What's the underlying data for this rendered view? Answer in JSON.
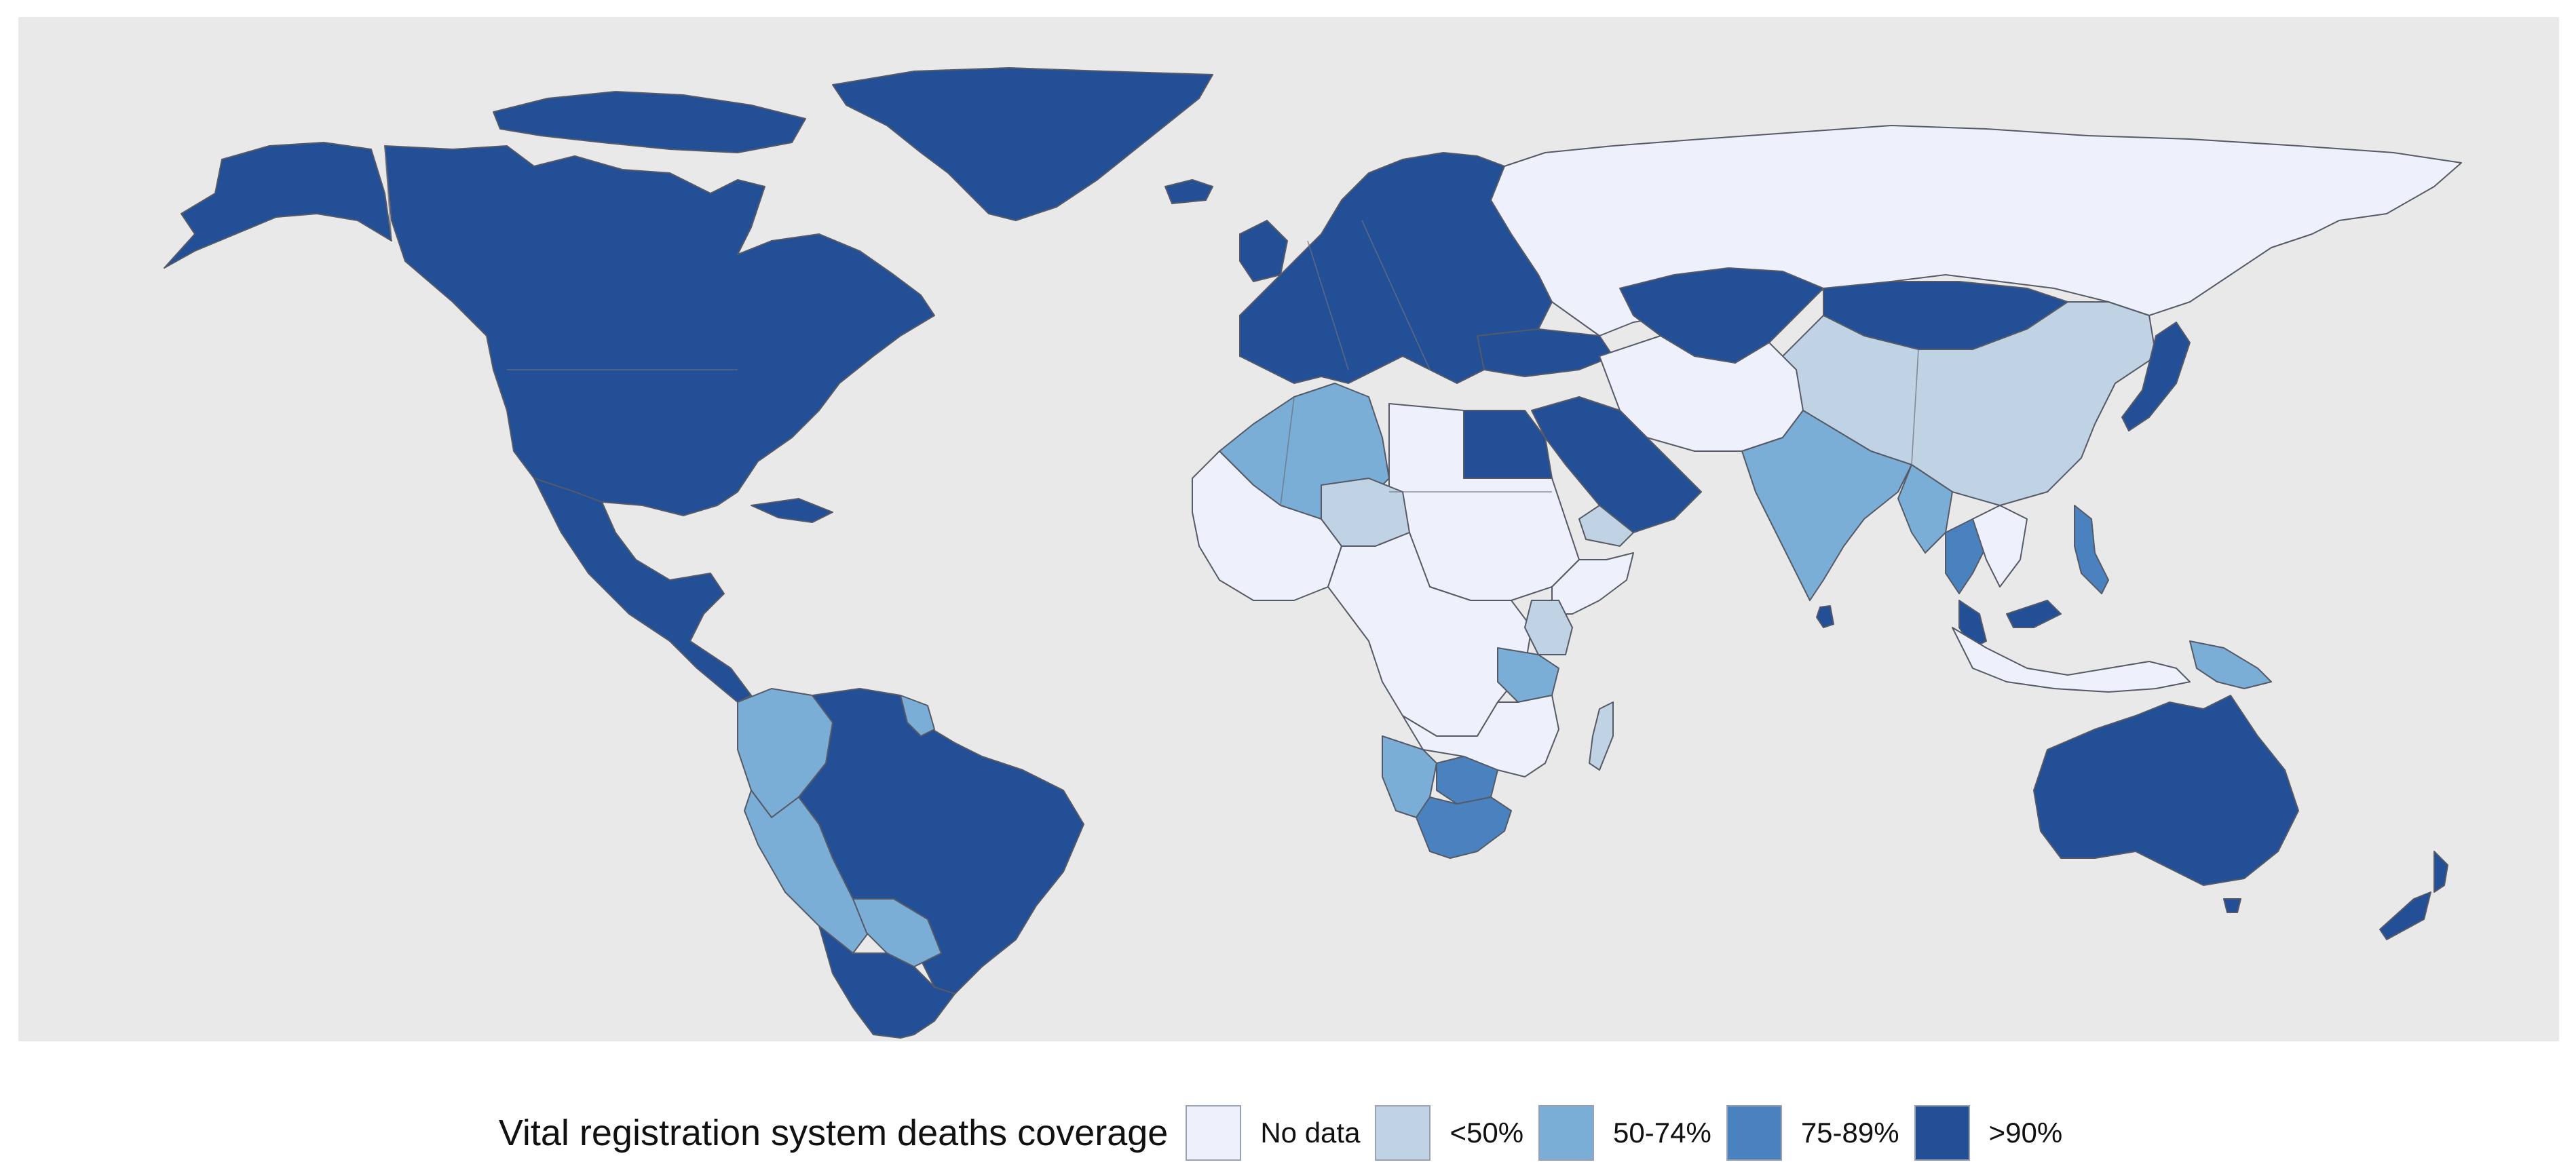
{
  "legend": {
    "title": "Vital registration system deaths coverage",
    "items": [
      {
        "label": "No data",
        "color": "#eef1fb"
      },
      {
        "label": "<50%",
        "color": "#c0d3e5"
      },
      {
        "label": "50-74%",
        "color": "#7aaed6"
      },
      {
        "label": "75-89%",
        "color": "#4a82c0"
      },
      {
        "label": ">90%",
        "color": "#234f97"
      }
    ]
  },
  "map": {
    "background": "#e9e9e9",
    "regions": [
      {
        "name": "North America",
        "category": ">90%"
      },
      {
        "name": "Greenland",
        "category": ">90%"
      },
      {
        "name": "Alaska",
        "category": ">90%"
      },
      {
        "name": "Mexico and Central America",
        "category": ">90%"
      },
      {
        "name": "Caribbean",
        "category": ">90%"
      },
      {
        "name": "Venezuela and Brazil",
        "category": ">90%"
      },
      {
        "name": "Colombia",
        "category": "50-74%"
      },
      {
        "name": "Peru",
        "category": "50-74%"
      },
      {
        "name": "Bolivia",
        "category": "50-74%"
      },
      {
        "name": "Guyana",
        "category": "50-74%"
      },
      {
        "name": "Argentina and Chile",
        "category": ">90%"
      },
      {
        "name": "Europe",
        "category": ">90%"
      },
      {
        "name": "Iceland",
        "category": ">90%"
      },
      {
        "name": "Russia",
        "category": "No data"
      },
      {
        "name": "Kazakhstan",
        "category": ">90%"
      },
      {
        "name": "Mongolia",
        "category": ">90%"
      },
      {
        "name": "China",
        "category": "<50%"
      },
      {
        "name": "Japan",
        "category": ">90%"
      },
      {
        "name": "Iran",
        "category": "No data"
      },
      {
        "name": "Central Asia",
        "category": "No data"
      },
      {
        "name": "Saudi Arabia and Gulf",
        "category": ">90%"
      },
      {
        "name": "Egypt",
        "category": ">90%"
      },
      {
        "name": "Yemen",
        "category": "<50%"
      },
      {
        "name": "India",
        "category": "50-74%"
      },
      {
        "name": "Sri Lanka",
        "category": ">90%"
      },
      {
        "name": "Myanmar",
        "category": "50-74%"
      },
      {
        "name": "Thailand",
        "category": "75-89%"
      },
      {
        "name": "Malaysia",
        "category": ">90%"
      },
      {
        "name": "Philippines",
        "category": "75-89%"
      },
      {
        "name": "Indonesia",
        "category": "No data"
      },
      {
        "name": "Papua New Guinea",
        "category": "50-74%"
      },
      {
        "name": "Australia",
        "category": ">90%"
      },
      {
        "name": "New Zealand",
        "category": ">90%"
      },
      {
        "name": "Algeria",
        "category": "50-74%"
      },
      {
        "name": "Niger",
        "category": "<50%"
      },
      {
        "name": "West Africa",
        "category": "No data"
      },
      {
        "name": "Central Africa",
        "category": "No data"
      },
      {
        "name": "Kenya",
        "category": "<50%"
      },
      {
        "name": "Tanzania",
        "category": "50-74%"
      },
      {
        "name": "Namibia",
        "category": "50-74%"
      },
      {
        "name": "Botswana",
        "category": "75-89%"
      },
      {
        "name": "South Africa",
        "category": "75-89%"
      },
      {
        "name": "Madagascar",
        "category": "<50%"
      }
    ]
  }
}
